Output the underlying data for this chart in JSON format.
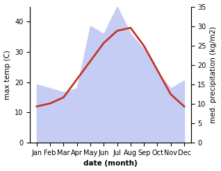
{
  "months": [
    "Jan",
    "Feb",
    "Mar",
    "Apr",
    "May",
    "Jun",
    "Jul",
    "Aug",
    "Sep",
    "Oct",
    "Nov",
    "Dec"
  ],
  "temp": [
    12,
    13,
    15,
    21,
    27,
    33,
    37,
    38,
    32,
    24,
    16,
    12
  ],
  "precip": [
    15,
    14,
    13,
    14,
    30,
    28,
    35,
    28,
    24,
    18,
    14,
    16
  ],
  "temp_color": "#c0392b",
  "precip_fill_color": "#c5cdf5",
  "temp_ylim": [
    0,
    45
  ],
  "precip_ylim": [
    0,
    35
  ],
  "temp_yticks": [
    0,
    10,
    20,
    30,
    40
  ],
  "precip_yticks": [
    0,
    5,
    10,
    15,
    20,
    25,
    30,
    35
  ],
  "xlabel": "date (month)",
  "ylabel_left": "max temp (C)",
  "ylabel_right": "med. precipitation (kg/m2)",
  "axis_label_fontsize": 7.5,
  "tick_fontsize": 7
}
